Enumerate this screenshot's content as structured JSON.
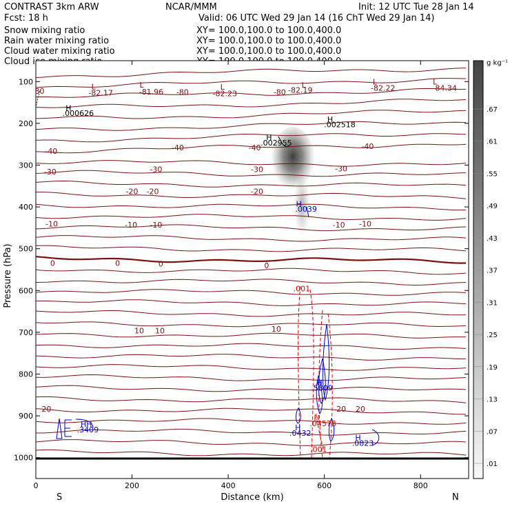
{
  "header": {
    "left1": "CONTRAST   3km ARW",
    "left2": "Fcst:    18 h",
    "center": "NCAR/MMM",
    "valid": "Valid: 06 UTC Wed 29 Jan 14 (16 ChT Wed 29 Jan 14)",
    "init": "Init: 12 UTC Tue 28 Jan 14"
  },
  "legend": [
    {
      "name": "Snow mixing ratio",
      "xy": "XY= 100.0,100.0 to 100.0,400.0",
      "color": "#000000"
    },
    {
      "name": "Rain water mixing ratio",
      "xy": "XY= 100.0,100.0 to 100.0,400.0",
      "color": "#e00000"
    },
    {
      "name": "Cloud water mixing ratio",
      "xy": "XY= 100.0,100.0 to 100.0,400.0",
      "color": "#0000cc"
    },
    {
      "name": "Cloud ice mixing ratio",
      "xy": "XY= 100.0,100.0 to 100.0,400.0",
      "color": "#000000"
    }
  ],
  "colors": {
    "temperature": "#7a1010",
    "rain": "#e00000",
    "cloud": "#0000cc",
    "ice": "#000000"
  },
  "chart_data": {
    "type": "heatmap",
    "xlabel": "Distance (km)",
    "ylabel": "Pressure (hPa)",
    "xlim": [
      0,
      900
    ],
    "ylim": [
      1050,
      50
    ],
    "xticks": [
      0,
      200,
      400,
      600,
      800
    ],
    "yticks": [
      100,
      200,
      300,
      400,
      500,
      600,
      700,
      800,
      900,
      1000
    ],
    "x_end_labels": {
      "left": "S",
      "right": "N"
    },
    "colorbar": {
      "unit": "g kg⁻¹",
      "levels": [
        ".01",
        ".07",
        ".13",
        ".19",
        ".25",
        ".31",
        ".37",
        ".43",
        ".49",
        ".55",
        ".61",
        ".67"
      ]
    },
    "temperature_labels": [
      {
        "text": "-80",
        "x": 5,
        "p": 123
      },
      {
        "text": "-82.17",
        "x": 135,
        "p": 127
      },
      {
        "text": "L",
        "x": 120,
        "p": 112
      },
      {
        "text": "-81.96",
        "x": 240,
        "p": 124
      },
      {
        "text": "L",
        "x": 220,
        "p": 108
      },
      {
        "text": "-80",
        "x": 305,
        "p": 125
      },
      {
        "text": "-82.23",
        "x": 393,
        "p": 128
      },
      {
        "text": "L",
        "x": 388,
        "p": 113
      },
      {
        "text": "-80",
        "x": 507,
        "p": 125
      },
      {
        "text": "-82.19",
        "x": 550,
        "p": 120
      },
      {
        "text": "L",
        "x": 557,
        "p": 108
      },
      {
        "text": "-82.22",
        "x": 722,
        "p": 115
      },
      {
        "text": "L",
        "x": 705,
        "p": 100
      },
      {
        "text": "-84.34",
        "x": 850,
        "p": 115
      },
      {
        "text": "L",
        "x": 830,
        "p": 100
      },
      {
        "text": "-40",
        "x": 32,
        "p": 266
      },
      {
        "text": "-40",
        "x": 295,
        "p": 258
      },
      {
        "text": "-40",
        "x": 455,
        "p": 258
      },
      {
        "text": "-40",
        "x": 690,
        "p": 255
      },
      {
        "text": "-30",
        "x": 30,
        "p": 316
      },
      {
        "text": "-30",
        "x": 250,
        "p": 310
      },
      {
        "text": "-30",
        "x": 460,
        "p": 310
      },
      {
        "text": "-30",
        "x": 635,
        "p": 308
      },
      {
        "text": "-20",
        "x": 200,
        "p": 363
      },
      {
        "text": "-20",
        "x": 243,
        "p": 363
      },
      {
        "text": "-20",
        "x": 460,
        "p": 363
      },
      {
        "text": "-10",
        "x": 33,
        "p": 440
      },
      {
        "text": "-10",
        "x": 198,
        "p": 443
      },
      {
        "text": "-10",
        "x": 250,
        "p": 443
      },
      {
        "text": "-10",
        "x": 630,
        "p": 443
      },
      {
        "text": "-10",
        "x": 685,
        "p": 440
      },
      {
        "text": "0",
        "x": 35,
        "p": 534
      },
      {
        "text": "0",
        "x": 170,
        "p": 534
      },
      {
        "text": "0",
        "x": 260,
        "p": 536
      },
      {
        "text": "0",
        "x": 480,
        "p": 540
      },
      {
        "text": "10",
        "x": 215,
        "p": 696
      },
      {
        "text": "10",
        "x": 258,
        "p": 696
      },
      {
        "text": "10",
        "x": 500,
        "p": 692
      },
      {
        "text": "20",
        "x": 22,
        "p": 883
      },
      {
        "text": "20",
        "x": 635,
        "p": 883
      },
      {
        "text": "20",
        "x": 675,
        "p": 883
      }
    ],
    "annotations": [
      {
        "text": "H",
        "x": 68,
        "p": 163,
        "color": "#000000"
      },
      {
        "text": ".000626",
        "x": 88,
        "p": 175,
        "color": "#000000"
      },
      {
        "text": "H",
        "x": 612,
        "p": 190,
        "color": "#000000"
      },
      {
        "text": ".002518",
        "x": 632,
        "p": 203,
        "color": "#000000"
      },
      {
        "text": "H",
        "x": 485,
        "p": 233,
        "color": "#000000"
      },
      {
        "text": ".002955",
        "x": 500,
        "p": 246,
        "color": "#000000"
      },
      {
        "text": "H",
        "x": 547,
        "p": 392,
        "color": "#0000cc"
      },
      {
        "text": ".0039",
        "x": 562,
        "p": 405,
        "color": "#0000cc"
      },
      {
        "text": ".001",
        "x": 553,
        "p": 595,
        "color": "#e00000"
      },
      {
        "text": "H",
        "x": 590,
        "p": 820,
        "color": "#0000cc"
      },
      {
        "text": ".5809",
        "x": 595,
        "p": 833,
        "color": "#0000cc"
      },
      {
        "text": "H",
        "x": 584,
        "p": 905,
        "color": "#e00000"
      },
      {
        "text": ".04578",
        "x": 597,
        "p": 918,
        "color": "#e00000"
      },
      {
        "text": "H",
        "x": 545,
        "p": 928,
        "color": "#0000cc"
      },
      {
        "text": ".0432",
        "x": 550,
        "p": 941,
        "color": "#0000cc"
      },
      {
        "text": "H",
        "x": 670,
        "p": 952,
        "color": "#0000cc"
      },
      {
        "text": ".0823",
        "x": 680,
        "p": 965,
        "color": "#0000cc"
      },
      {
        "text": ".001",
        "x": 588,
        "p": 980,
        "color": "#e00000"
      },
      {
        "text": "HH",
        "x": 105,
        "p": 920,
        "color": "#0000cc"
      },
      {
        "text": ".3409",
        "x": 108,
        "p": 933,
        "color": "#0000cc"
      }
    ]
  }
}
